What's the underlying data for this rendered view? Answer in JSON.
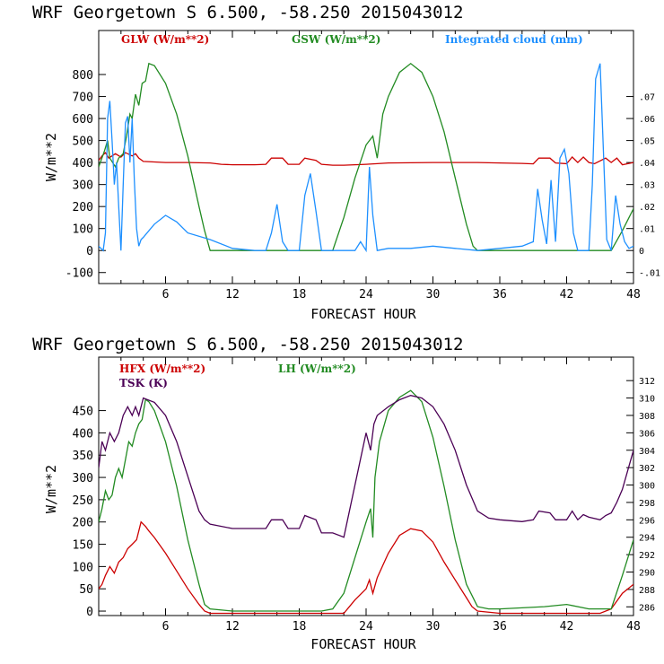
{
  "chart_data": [
    {
      "type": "line",
      "title": "WRF   Georgetown S   6.500, -58.250  2015043012",
      "xlabel": "FORECAST HOUR",
      "ylabel": "W/m**2",
      "xlim": [
        0,
        48
      ],
      "ylim": [
        -150,
        1000
      ],
      "y2lim": [
        -0.015,
        0.1
      ],
      "xticks": [
        "6",
        "12",
        "18",
        "24",
        "30",
        "36",
        "42",
        "48"
      ],
      "xtick_values": [
        6,
        12,
        18,
        24,
        30,
        36,
        42,
        48
      ],
      "yticks": [
        "800",
        "700",
        "600",
        "500",
        "400",
        "300",
        "200",
        "100",
        "0",
        "-100"
      ],
      "ytick_values": [
        800,
        700,
        600,
        500,
        400,
        300,
        200,
        100,
        0,
        -100
      ],
      "y2ticks": [
        ".07",
        ".06",
        ".05",
        ".04",
        ".03",
        ".02",
        ".01",
        "0",
        "-.01"
      ],
      "y2tick_values": [
        0.07,
        0.06,
        0.05,
        0.04,
        0.03,
        0.02,
        0.01,
        0,
        -0.01
      ],
      "legend": [
        {
          "label": "GLW (W/m**2)",
          "color": "#cc0000"
        },
        {
          "label": "GSW (W/m**2)",
          "color": "#228b22"
        },
        {
          "label": "Integrated cloud (mm)",
          "color": "#1e90ff"
        }
      ],
      "series": [
        {
          "name": "GLW (W/m**2)",
          "axis": "left",
          "color": "#cc0000",
          "x": [
            0,
            0.3,
            0.6,
            0.9,
            1.5,
            2.0,
            2.4,
            3.0,
            3.3,
            3.6,
            4.0,
            6,
            8,
            10,
            11,
            12,
            14,
            15,
            15.5,
            16.5,
            17,
            18,
            18.5,
            19.5,
            20,
            21,
            22,
            24,
            26,
            30,
            34,
            36,
            38,
            39,
            39.5,
            40.5,
            41,
            42,
            42.5,
            43,
            43.5,
            44,
            44.5,
            45.5,
            46,
            46.5,
            47,
            48
          ],
          "y": [
            410,
            430,
            445,
            420,
            440,
            425,
            445,
            430,
            440,
            420,
            405,
            400,
            400,
            398,
            392,
            390,
            390,
            392,
            420,
            420,
            392,
            392,
            420,
            410,
            392,
            388,
            388,
            392,
            398,
            400,
            400,
            398,
            396,
            394,
            420,
            420,
            398,
            395,
            425,
            400,
            425,
            400,
            395,
            420,
            400,
            420,
            390,
            400
          ]
        },
        {
          "name": "GSW (W/m**2)",
          "axis": "left",
          "color": "#228b22",
          "x": [
            0,
            0.5,
            0.8,
            1.0,
            1.5,
            1.8,
            2.2,
            2.5,
            2.8,
            3.0,
            3.3,
            3.6,
            3.9,
            4.2,
            4.5,
            5,
            6,
            7,
            8,
            9,
            9.5,
            10,
            12,
            18,
            20,
            21,
            22,
            23,
            24,
            24.6,
            25.0,
            25.5,
            26,
            27,
            28,
            29,
            30,
            31,
            32,
            33,
            33.6,
            34,
            36,
            40,
            44,
            45,
            46,
            47,
            48
          ],
          "y": [
            380,
            450,
            500,
            420,
            380,
            420,
            440,
            520,
            620,
            600,
            710,
            660,
            760,
            770,
            850,
            840,
            760,
            620,
            430,
            200,
            90,
            0,
            0,
            0,
            0,
            0,
            150,
            330,
            480,
            520,
            420,
            620,
            700,
            810,
            850,
            810,
            700,
            540,
            330,
            120,
            20,
            0,
            0,
            0,
            0,
            0,
            0,
            90,
            190
          ]
        },
        {
          "name": "Integrated cloud (mm)",
          "axis": "right",
          "color": "#1e90ff",
          "x": [
            0,
            0.2,
            0.4,
            0.6,
            0.8,
            1.0,
            1.2,
            1.4,
            1.6,
            1.8,
            2.0,
            2.2,
            2.4,
            2.6,
            2.8,
            3.0,
            3.2,
            3.4,
            3.6,
            3.8,
            4.0,
            5,
            6,
            7,
            8,
            10,
            12,
            14,
            15,
            15.5,
            16,
            16.5,
            17,
            18,
            18.5,
            19,
            19.5,
            20,
            23,
            23.5,
            24,
            24.3,
            24.6,
            25,
            26,
            28,
            30,
            32,
            34,
            36,
            38,
            39,
            39.4,
            39.8,
            40.2,
            40.6,
            41,
            41.4,
            41.8,
            42.2,
            42.6,
            43,
            44,
            44.3,
            44.6,
            45,
            45.3,
            45.6,
            46,
            46.4,
            46.8,
            47.2,
            47.6,
            48
          ],
          "y": [
            0.002,
            0.001,
            0.0,
            0.008,
            0.06,
            0.068,
            0.05,
            0.03,
            0.04,
            0.02,
            0.0,
            0.03,
            0.058,
            0.061,
            0.04,
            0.06,
            0.032,
            0.01,
            0.002,
            0.005,
            0.006,
            0.012,
            0.016,
            0.013,
            0.008,
            0.005,
            0.001,
            0.0,
            0.0,
            0.008,
            0.021,
            0.004,
            0.0,
            0.0,
            0.025,
            0.035,
            0.018,
            0.0,
            0.0,
            0.004,
            0.0,
            0.038,
            0.016,
            0.0,
            0.001,
            0.001,
            0.002,
            0.001,
            0.0,
            0.001,
            0.002,
            0.004,
            0.028,
            0.014,
            0.003,
            0.032,
            0.004,
            0.042,
            0.046,
            0.035,
            0.008,
            0.0,
            0.0,
            0.03,
            0.078,
            0.085,
            0.045,
            0.005,
            0.0,
            0.025,
            0.012,
            0.004,
            0.001,
            0.002
          ]
        }
      ]
    },
    {
      "type": "line",
      "title": "WRF   Georgetown S   6.500, -58.250  2015043012",
      "xlabel": "FORECAST HOUR",
      "ylabel": "W/m**2",
      "xlim": [
        0,
        48
      ],
      "ylim": [
        -10,
        570
      ],
      "y2lim": [
        285,
        314.7
      ],
      "xticks": [
        "6",
        "12",
        "18",
        "24",
        "30",
        "36",
        "42",
        "48"
      ],
      "xtick_values": [
        6,
        12,
        18,
        24,
        30,
        36,
        42,
        48
      ],
      "yticks": [
        "450",
        "400",
        "350",
        "300",
        "250",
        "200",
        "150",
        "100",
        "50",
        "0"
      ],
      "ytick_values": [
        450,
        400,
        350,
        300,
        250,
        200,
        150,
        100,
        50,
        0
      ],
      "y2ticks": [
        "312",
        "310",
        "308",
        "306",
        "304",
        "302",
        "300",
        "298",
        "296",
        "294",
        "292",
        "290",
        "288",
        "286"
      ],
      "y2tick_values": [
        312,
        310,
        308,
        306,
        304,
        302,
        300,
        298,
        296,
        294,
        292,
        290,
        288,
        286
      ],
      "legend": [
        {
          "label": "HFX (W/m**2)",
          "color": "#cc0000"
        },
        {
          "label": "LH  (W/m**2)",
          "color": "#228b22"
        },
        {
          "label": "TSK (K)",
          "color": "#4b0055"
        }
      ],
      "series": [
        {
          "name": "HFX (W/m**2)",
          "axis": "left",
          "color": "#cc0000",
          "x": [
            0,
            0.3,
            0.6,
            1.0,
            1.4,
            1.8,
            2.2,
            2.6,
            3.0,
            3.4,
            3.8,
            4.2,
            4.5,
            5,
            6,
            7,
            8,
            9,
            9.5,
            10,
            12,
            14,
            16,
            18,
            20,
            21,
            22,
            22.5,
            23,
            24,
            24.3,
            24.6,
            25,
            26,
            27,
            28,
            29,
            30,
            31,
            32,
            33,
            33.5,
            34,
            36,
            40,
            44,
            45,
            46,
            47,
            48
          ],
          "y": [
            50,
            60,
            80,
            100,
            85,
            110,
            120,
            140,
            150,
            160,
            200,
            190,
            180,
            165,
            130,
            90,
            50,
            15,
            0,
            -5,
            -5,
            -5,
            -5,
            -5,
            -5,
            -5,
            -5,
            10,
            25,
            50,
            70,
            40,
            75,
            130,
            170,
            185,
            180,
            155,
            110,
            70,
            30,
            10,
            0,
            -5,
            -5,
            -5,
            -5,
            5,
            40,
            60
          ]
        },
        {
          "name": "LH  (W/m**2)",
          "axis": "left",
          "color": "#228b22",
          "x": [
            0,
            0.3,
            0.6,
            0.9,
            1.2,
            1.5,
            1.8,
            2.1,
            2.4,
            2.7,
            3.0,
            3.3,
            3.6,
            3.9,
            4.2,
            4.5,
            5,
            6,
            7,
            8,
            9,
            9.5,
            10,
            12,
            14,
            16,
            18,
            20,
            21,
            22,
            23,
            24,
            24.4,
            24.6,
            24.8,
            25.2,
            26,
            27,
            28,
            29,
            30,
            31,
            32,
            33,
            34,
            35,
            36,
            40,
            42,
            44,
            46,
            47,
            48
          ],
          "y": [
            200,
            230,
            270,
            250,
            260,
            300,
            320,
            300,
            340,
            380,
            370,
            400,
            420,
            430,
            475,
            470,
            450,
            380,
            280,
            160,
            60,
            15,
            5,
            0,
            0,
            0,
            0,
            0,
            5,
            40,
            120,
            200,
            230,
            165,
            300,
            380,
            450,
            480,
            495,
            470,
            390,
            280,
            160,
            60,
            10,
            5,
            5,
            10,
            15,
            5,
            5,
            80,
            160
          ]
        },
        {
          "name": "TSK (K)",
          "axis": "right",
          "color": "#4b0055",
          "x": [
            0,
            0.3,
            0.6,
            1.0,
            1.4,
            1.8,
            2.2,
            2.6,
            3.0,
            3.3,
            3.6,
            4,
            5,
            6,
            7,
            8,
            9,
            9.5,
            10,
            12,
            14,
            15,
            15.5,
            16.5,
            17,
            18,
            18.5,
            19.5,
            20,
            21,
            22,
            23,
            24,
            24.4,
            24.7,
            25,
            26,
            27,
            28,
            29,
            30,
            31,
            32,
            33,
            34,
            35,
            36,
            38,
            39,
            39.5,
            40.5,
            41,
            42,
            42.5,
            43,
            43.5,
            44,
            45,
            45.5,
            46,
            46.5,
            47,
            48
          ],
          "y": [
            302,
            305,
            304,
            306,
            305,
            306,
            308,
            309,
            308,
            309,
            308,
            310,
            309.5,
            308,
            305,
            301,
            297,
            296,
            295.5,
            295,
            295,
            295,
            296,
            296,
            295,
            295,
            296.5,
            296,
            294.5,
            294.5,
            294,
            300,
            306,
            304,
            307,
            308,
            309,
            309.8,
            310.3,
            310,
            309,
            307,
            304,
            300,
            297,
            296.2,
            296,
            295.8,
            296,
            297,
            296.8,
            296,
            296,
            297,
            296,
            296.6,
            296.3,
            296,
            296.5,
            296.8,
            298,
            299.5,
            304
          ]
        }
      ]
    }
  ]
}
